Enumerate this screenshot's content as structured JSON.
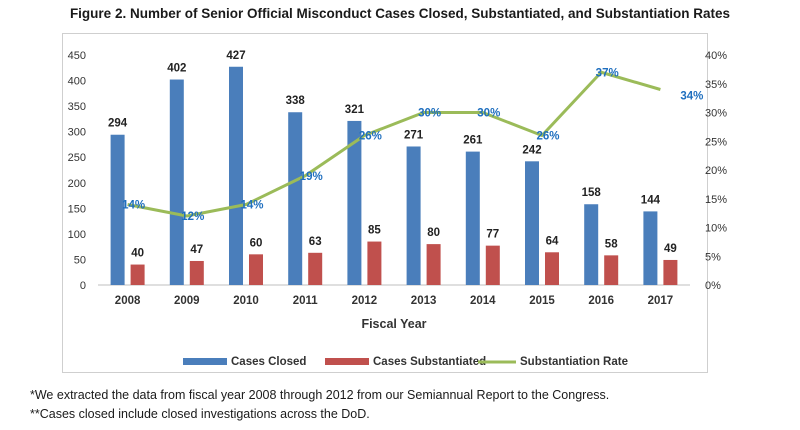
{
  "title": "Figure 2.  Number of Senior Official Misconduct Cases Closed, Substantiated, and Substantiation Rates",
  "notes": [
    "*We extracted the data from fiscal year 2008 through 2012 from our Semiannual Report to the Congress.",
    "**Cases closed include closed investigations across the DoD."
  ],
  "chart_data": {
    "type": "bar",
    "title": "Figure 2.  Number of Senior Official Misconduct Cases Closed, Substantiated, and Substantiation Rates",
    "xlabel": "Fiscal Year",
    "ylabel": "",
    "categories": [
      "2008",
      "2009",
      "2010",
      "2011",
      "2012",
      "2013",
      "2014",
      "2015",
      "2016",
      "2017"
    ],
    "series": [
      {
        "name": "Cases Closed",
        "type": "bar",
        "axis": "left",
        "color": "#4a7ebb",
        "values": [
          294,
          402,
          427,
          338,
          321,
          271,
          261,
          242,
          158,
          144
        ]
      },
      {
        "name": "Cases Substantiated",
        "type": "bar",
        "axis": "left",
        "color": "#c0504d",
        "values": [
          40,
          47,
          60,
          63,
          85,
          80,
          77,
          64,
          58,
          49
        ]
      },
      {
        "name": "Substantiation Rate",
        "type": "line",
        "axis": "right",
        "color": "#9bbb59",
        "label_color": "#1f6fbf",
        "values": [
          14,
          12,
          14,
          19,
          26,
          30,
          30,
          26,
          37,
          34
        ],
        "labels": [
          "14%",
          "12%",
          "14%",
          "19%",
          "26%",
          "30%",
          "30%",
          "26%",
          "37%",
          "34%"
        ]
      }
    ],
    "ylim": [
      0,
      450
    ],
    "yticks": [
      "0",
      "50",
      "100",
      "150",
      "200",
      "250",
      "300",
      "350",
      "400",
      "450"
    ],
    "y2lim": [
      0,
      40
    ],
    "y2ticks": [
      "0%",
      "5%",
      "10%",
      "15%",
      "20%",
      "25%",
      "30%",
      "35%",
      "40%"
    ],
    "grid": false,
    "legend_position": "bottom"
  }
}
